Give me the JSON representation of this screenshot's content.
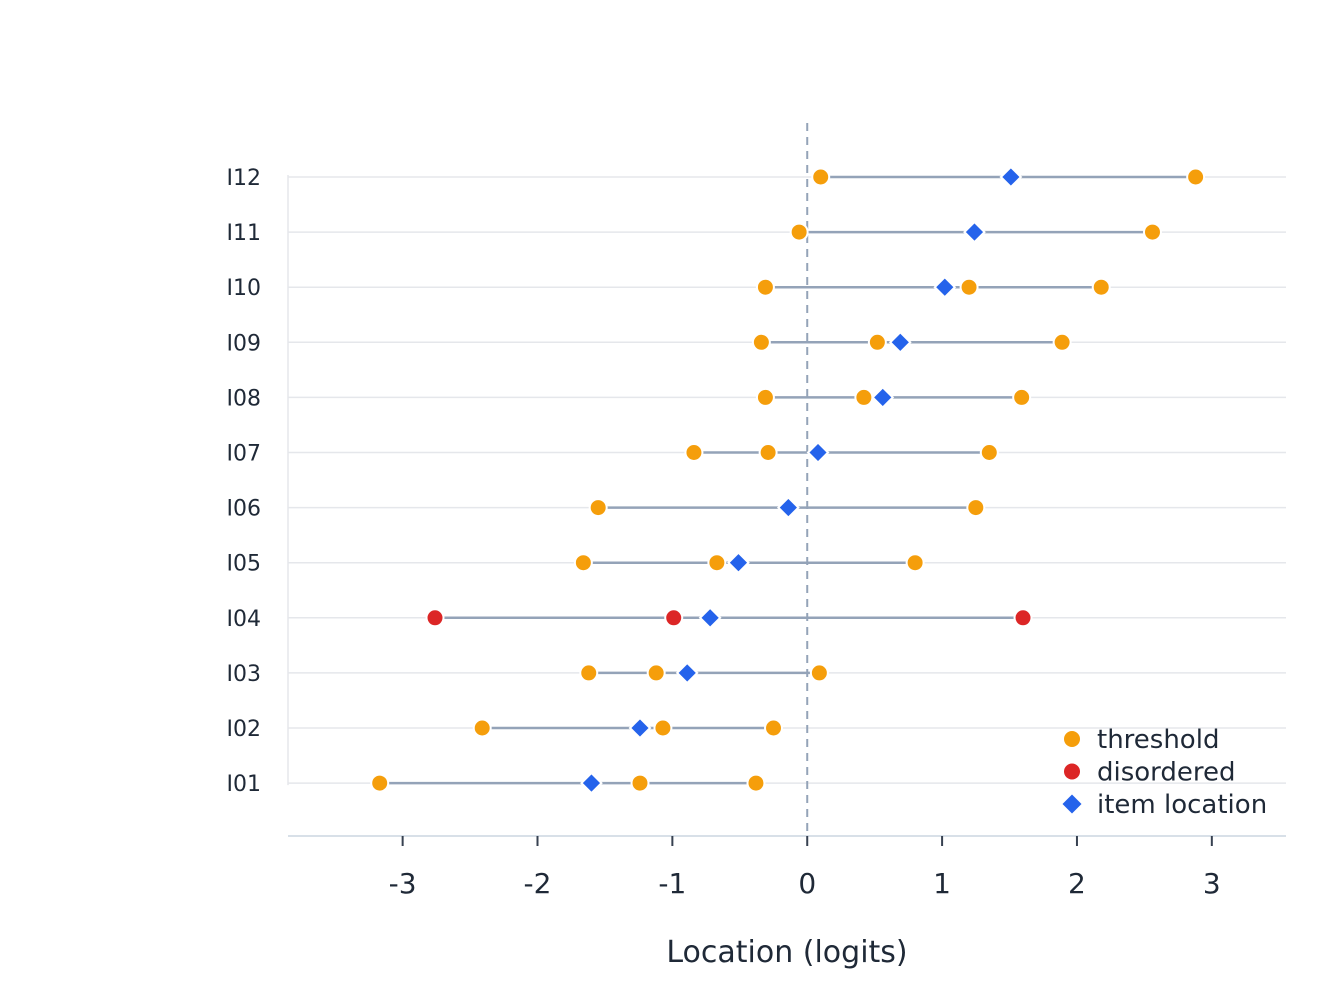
{
  "chart_data": {
    "type": "scatter",
    "xlabel": "Location (logits)",
    "ylabel": "",
    "xlim": [
      -3.85,
      3.55
    ],
    "x_ticks": [
      -3,
      -2,
      -1,
      0,
      1,
      2,
      3
    ],
    "x_tick_labels": [
      "-3",
      "-2",
      "-1",
      "0",
      "1",
      "2",
      "3"
    ],
    "reference_line": 0,
    "grid": "horizontal",
    "legend_position": "bottom-right",
    "legend": [
      {
        "key": "threshold",
        "label": "threshold",
        "color": "#f59e0b",
        "marker": "circle"
      },
      {
        "key": "disordered",
        "label": "disordered",
        "color": "#dc2626",
        "marker": "circle"
      },
      {
        "key": "item_location",
        "label": "item location",
        "color": "#2563eb",
        "marker": "diamond"
      }
    ],
    "items": [
      {
        "label": "I01",
        "thresholds": [
          -3.17,
          -1.24,
          -0.38
        ],
        "disordered": false,
        "location": -1.6
      },
      {
        "label": "I02",
        "thresholds": [
          -2.41,
          -1.07,
          -0.25
        ],
        "disordered": false,
        "location": -1.24
      },
      {
        "label": "I03",
        "thresholds": [
          -1.62,
          -1.12,
          0.09
        ],
        "disordered": false,
        "location": -0.89
      },
      {
        "label": "I04",
        "thresholds": [
          -2.76,
          -0.99,
          1.6
        ],
        "disordered": true,
        "location": -0.72
      },
      {
        "label": "I05",
        "thresholds": [
          -1.66,
          -0.67,
          0.8
        ],
        "disordered": false,
        "location": -0.51
      },
      {
        "label": "I06",
        "thresholds": [
          -1.55,
          1.25
        ],
        "disordered": false,
        "location": -0.14
      },
      {
        "label": "I07",
        "thresholds": [
          -0.84,
          -0.29,
          1.35
        ],
        "disordered": false,
        "location": 0.08
      },
      {
        "label": "I08",
        "thresholds": [
          -0.31,
          0.42,
          1.59
        ],
        "disordered": false,
        "location": 0.56
      },
      {
        "label": "I09",
        "thresholds": [
          -0.34,
          0.52,
          1.89
        ],
        "disordered": false,
        "location": 0.69
      },
      {
        "label": "I10",
        "thresholds": [
          -0.31,
          1.2,
          2.18
        ],
        "disordered": false,
        "location": 1.02
      },
      {
        "label": "I11",
        "thresholds": [
          -0.06,
          2.56
        ],
        "disordered": false,
        "location": 1.24
      },
      {
        "label": "I12",
        "thresholds": [
          0.1,
          2.88
        ],
        "disordered": false,
        "location": 1.51
      }
    ]
  },
  "colors": {
    "threshold": "#f59e0b",
    "disordered": "#dc2626",
    "item_location": "#2563eb",
    "range_line": "#94a3b8",
    "grid": "#e5e7eb",
    "reference": "#94a3b8",
    "axis": "#cbd5e1"
  }
}
